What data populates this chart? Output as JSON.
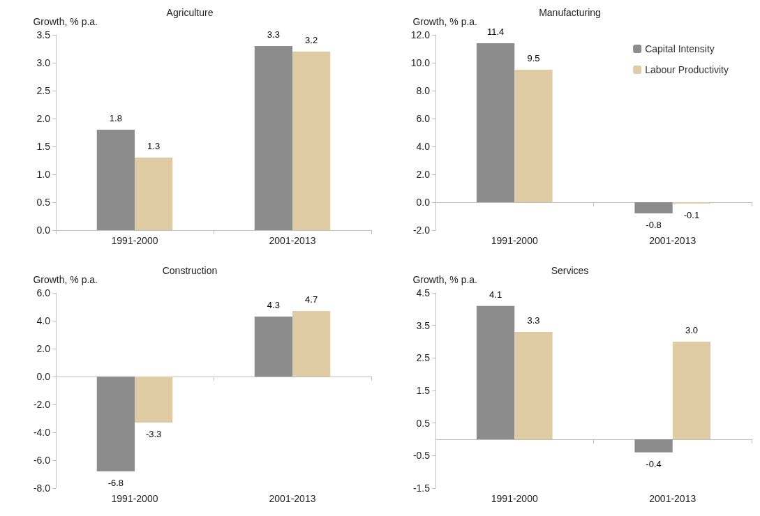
{
  "chart_data": [
    {
      "type": "bar",
      "title": "Agriculture",
      "ylabel": "Growth, % p.a.",
      "categories": [
        "1991-2000",
        "2001-2013"
      ],
      "series": [
        {
          "color": "#8c8c8c",
          "values": [
            1.8,
            3.3
          ],
          "value_labels": [
            "1.8",
            "3.3"
          ]
        },
        {
          "color": "#dfcba4",
          "values": [
            1.3,
            3.2
          ],
          "value_labels": [
            "1.3",
            "3.2"
          ]
        }
      ],
      "ylim": [
        0,
        3.5
      ],
      "yticks": [
        {
          "value": 0,
          "label": "0.0"
        },
        {
          "value": 0.5,
          "label": "0.5"
        },
        {
          "value": 1,
          "label": "1.0"
        },
        {
          "value": 1.5,
          "label": "1.5"
        },
        {
          "value": 2,
          "label": "2.0"
        },
        {
          "value": 2.5,
          "label": "2.5"
        },
        {
          "value": 3,
          "label": "3.0"
        },
        {
          "value": 3.5,
          "label": "3.5"
        }
      ]
    },
    {
      "type": "bar",
      "title": "Manufacturing",
      "ylabel": "Growth, % p.a.",
      "categories": [
        "1991-2000",
        "2001-2013"
      ],
      "series": [
        {
          "name": "Capital Intensity",
          "color": "#8c8c8c",
          "values": [
            11.4,
            -0.8
          ],
          "value_labels": [
            "11.4",
            "-0.8"
          ]
        },
        {
          "name": "Labour Productivity",
          "color": "#dfcba4",
          "values": [
            9.5,
            -0.1
          ],
          "value_labels": [
            "9.5",
            "-0.1"
          ]
        }
      ],
      "ylim": [
        -2,
        12
      ],
      "yticks": [
        {
          "value": -2,
          "label": "-2.0"
        },
        {
          "value": 0,
          "label": "0.0"
        },
        {
          "value": 2,
          "label": "2.0"
        },
        {
          "value": 4,
          "label": "4.0"
        },
        {
          "value": 6,
          "label": "6.0"
        },
        {
          "value": 8,
          "label": "8.0"
        },
        {
          "value": 10,
          "label": "10.0"
        },
        {
          "value": 12,
          "label": "12.0"
        }
      ],
      "legend": "top right"
    },
    {
      "type": "bar",
      "title": "Construction",
      "ylabel": "Growth, % p.a.",
      "categories": [
        "1991-2000",
        "2001-2013"
      ],
      "series": [
        {
          "color": "#8c8c8c",
          "values": [
            -6.8,
            4.3
          ],
          "value_labels": [
            "-6.8",
            "4.3"
          ]
        },
        {
          "color": "#dfcba4",
          "values": [
            -3.3,
            4.7
          ],
          "value_labels": [
            "-3.3",
            "4.7"
          ]
        }
      ],
      "ylim": [
        -8,
        6
      ],
      "yticks": [
        {
          "value": -8,
          "label": "-8.0"
        },
        {
          "value": -6,
          "label": "-6.0"
        },
        {
          "value": -4,
          "label": "-4.0"
        },
        {
          "value": -2,
          "label": "-2.0"
        },
        {
          "value": 0,
          "label": "0.0"
        },
        {
          "value": 2,
          "label": "2.0"
        },
        {
          "value": 4,
          "label": "4.0"
        },
        {
          "value": 6,
          "label": "6.0"
        }
      ]
    },
    {
      "type": "bar",
      "title": "Services",
      "ylabel": "Growth, % p.a.",
      "categories": [
        "1991-2000",
        "2001-2013"
      ],
      "series": [
        {
          "color": "#8c8c8c",
          "values": [
            4.1,
            -0.4
          ],
          "value_labels": [
            "4.1",
            "-0.4"
          ]
        },
        {
          "color": "#dfcba4",
          "values": [
            3.3,
            3.0
          ],
          "value_labels": [
            "3.3",
            "3.0"
          ]
        }
      ],
      "ylim": [
        -1.5,
        4.5
      ],
      "yticks": [
        -1.5,
        -0.5,
        0.5,
        1.5,
        2.5,
        3.5,
        4.5
      ]
    }
  ]
}
